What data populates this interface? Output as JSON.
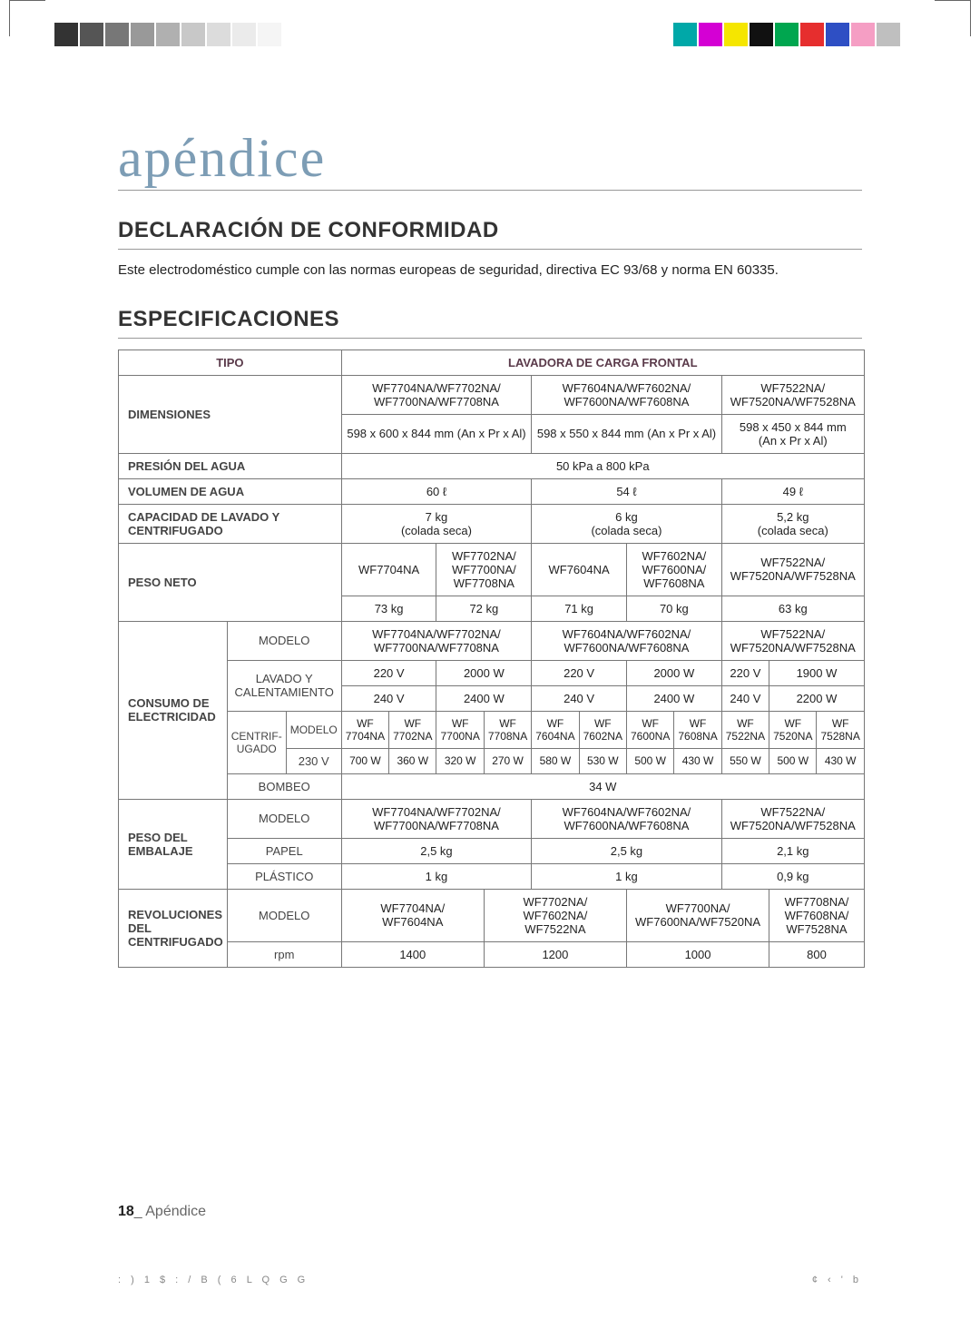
{
  "colorbars": {
    "left": [
      "#333333",
      "#555555",
      "#777777",
      "#999999",
      "#b0b0b0",
      "#c8c8c8",
      "#dcdcdc",
      "#ebebeb",
      "#f5f5f5",
      "#ffffff"
    ],
    "right": [
      "#00a8a8",
      "#d400d4",
      "#f5e600",
      "#111111",
      "#00a64f",
      "#e62e2e",
      "#2e4fc4",
      "#f59ec4",
      "#bfbfbf",
      "#ffffff"
    ]
  },
  "title": "apéndice",
  "conformity": {
    "heading": "DECLARACIÓN DE CONFORMIDAD",
    "text": "Este electrodoméstico cumple con las normas europeas de seguridad, directiva EC 93/68 y norma EN 60335."
  },
  "specs_heading": "ESPECIFICACIONES",
  "table": {
    "tipo_label": "TIPO",
    "tipo_value": "LAVADORA DE CARGA FRONTAL",
    "dimensiones_label": "DIMENSIONES",
    "model_groups": [
      "WF7704NA/WF7702NA/\nWF7700NA/WF7708NA",
      "WF7604NA/WF7602NA/\nWF7600NA/WF7608NA",
      "WF7522NA/\nWF7520NA/WF7528NA"
    ],
    "dims_values": [
      "598 x 600 x 844 mm (An x Pr x Al)",
      "598 x 550 x 844 mm (An x Pr x Al)",
      "598 x 450 x 844 mm\n(An x Pr x Al)"
    ],
    "presion_label": "PRESIÓN DEL AGUA",
    "presion_value": "50 kPa a 800 kPa",
    "volumen_label": "VOLUMEN DE AGUA",
    "volumen_values": [
      "60 ℓ",
      "54 ℓ",
      "49 ℓ"
    ],
    "capacidad_label": "CAPACIDAD DE LAVADO Y CENTRIFUGADO",
    "capacidad_values": [
      "7 kg\n(colada seca)",
      "6 kg\n(colada seca)",
      "5,2 kg\n(colada seca)"
    ],
    "peso_neto_label": "PESO NETO",
    "peso_neto_models": [
      "WF7704NA",
      "WF7702NA/\nWF7700NA/\nWF7708NA",
      "WF7604NA",
      "WF7602NA/\nWF7600NA/\nWF7608NA",
      "WF7522NA/\nWF7520NA/WF7528NA"
    ],
    "peso_neto_values": [
      "73 kg",
      "72 kg",
      "71 kg",
      "70 kg",
      "63 kg"
    ],
    "consumo_label": "CONSUMO DE ELECTRICIDAD",
    "modelo_label": "MODELO",
    "lavado_label": "LAVADO Y CALENTAMIENTO",
    "lavado_220": [
      "220 V",
      "2000 W",
      "220 V",
      "2000 W",
      "220 V",
      "1900 W"
    ],
    "lavado_240": [
      "240 V",
      "2400 W",
      "240 V",
      "2400 W",
      "240 V",
      "2200 W"
    ],
    "centrif_label": "CENTRIF-UGADO",
    "centrif_models": [
      "WF\n7704NA",
      "WF\n7702NA",
      "WF\n7700NA",
      "WF\n7708NA",
      "WF\n7604NA",
      "WF\n7602NA",
      "WF\n7600NA",
      "WF\n7608NA",
      "WF\n7522NA",
      "WF\n7520NA",
      "WF\n7528NA"
    ],
    "centrif_230_label": "230 V",
    "centrif_230": [
      "700 W",
      "360 W",
      "320 W",
      "270 W",
      "580 W",
      "530 W",
      "500 W",
      "430 W",
      "550 W",
      "500 W",
      "430 W"
    ],
    "bombeo_label": "BOMBEO",
    "bombeo_value": "34 W",
    "peso_emb_label": "PESO DEL EMBALAJE",
    "papel_label": "PAPEL",
    "papel_values": [
      "2,5 kg",
      "2,5 kg",
      "2,1 kg"
    ],
    "plastico_label": "PLÁSTICO",
    "plastico_values": [
      "1 kg",
      "1 kg",
      "0,9 kg"
    ],
    "rpm_section_label": "REVOLUCIONES DEL CENTRIFUGADO",
    "rpm_models": [
      "WF7704NA/\nWF7604NA",
      "WF7702NA/\nWF7602NA/\nWF7522NA",
      "WF7700NA/\nWF7600NA/WF7520NA",
      "WF7708NA/\nWF7608NA/\nWF7528NA"
    ],
    "rpm_label": "rpm",
    "rpm_values": [
      "1400",
      "1200",
      "1000",
      "800"
    ]
  },
  "footer": {
    "page": "18",
    "label": "_ Apéndice"
  },
  "meta": {
    "left": ": )    1 $ :        / B ( 6  L Q G G",
    "right": "¢ ‹ ' b"
  }
}
